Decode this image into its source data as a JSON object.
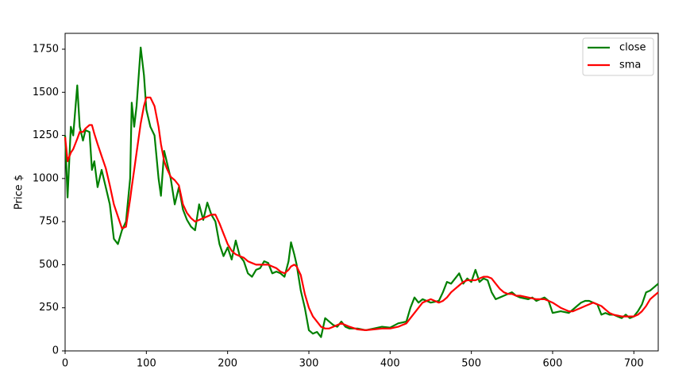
{
  "chart_data": {
    "type": "line",
    "y_label": "Price $",
    "x": [
      0,
      3,
      7,
      10,
      15,
      18,
      22,
      25,
      30,
      33,
      36,
      40,
      45,
      50,
      55,
      60,
      65,
      70,
      75,
      80,
      82,
      85,
      88,
      93,
      97,
      100,
      105,
      110,
      115,
      118,
      122,
      125,
      130,
      135,
      140,
      145,
      150,
      155,
      160,
      165,
      170,
      175,
      180,
      185,
      190,
      195,
      200,
      205,
      210,
      215,
      220,
      225,
      230,
      235,
      240,
      245,
      250,
      255,
      260,
      265,
      270,
      275,
      278,
      282,
      285,
      290,
      295,
      300,
      305,
      310,
      315,
      320,
      325,
      330,
      335,
      340,
      345,
      350,
      360,
      370,
      380,
      390,
      400,
      410,
      420,
      425,
      430,
      435,
      440,
      450,
      460,
      465,
      470,
      475,
      480,
      485,
      490,
      495,
      500,
      505,
      510,
      515,
      520,
      525,
      530,
      535,
      540,
      545,
      550,
      555,
      560,
      570,
      575,
      580,
      585,
      590,
      595,
      600,
      610,
      620,
      625,
      630,
      635,
      640,
      645,
      650,
      655,
      660,
      665,
      670,
      675,
      680,
      685,
      690,
      695,
      700,
      705,
      710,
      715,
      720,
      725,
      730
    ],
    "series": [
      {
        "name": "close",
        "color": "#008000",
        "values": [
          1250,
          890,
          1300,
          1250,
          1540,
          1300,
          1220,
          1280,
          1270,
          1050,
          1100,
          950,
          1050,
          950,
          850,
          650,
          620,
          700,
          750,
          1000,
          1440,
          1300,
          1420,
          1760,
          1600,
          1400,
          1300,
          1250,
          1000,
          900,
          1160,
          1100,
          1000,
          850,
          950,
          820,
          760,
          720,
          700,
          850,
          760,
          860,
          790,
          750,
          620,
          550,
          600,
          530,
          640,
          550,
          520,
          450,
          430,
          470,
          480,
          520,
          510,
          450,
          460,
          450,
          430,
          520,
          630,
          560,
          500,
          350,
          250,
          120,
          100,
          110,
          80,
          190,
          170,
          150,
          140,
          170,
          140,
          130,
          130,
          120,
          130,
          140,
          135,
          160,
          170,
          250,
          310,
          280,
          300,
          280,
          290,
          340,
          400,
          390,
          420,
          450,
          390,
          420,
          400,
          470,
          400,
          420,
          410,
          340,
          300,
          310,
          320,
          330,
          340,
          320,
          310,
          300,
          310,
          290,
          300,
          310,
          290,
          220,
          230,
          220,
          240,
          260,
          280,
          290,
          290,
          280,
          270,
          210,
          220,
          210,
          210,
          200,
          190,
          210,
          190,
          200,
          230,
          270,
          340,
          350,
          370,
          390
        ]
      },
      {
        "name": "sma",
        "color": "#ff0000",
        "values": [
          1240,
          1100,
          1150,
          1170,
          1230,
          1270,
          1270,
          1290,
          1310,
          1310,
          1260,
          1200,
          1130,
          1060,
          960,
          850,
          780,
          710,
          720,
          880,
          950,
          1050,
          1150,
          1320,
          1420,
          1470,
          1470,
          1420,
          1300,
          1200,
          1100,
          1060,
          1010,
          990,
          960,
          850,
          800,
          770,
          750,
          760,
          770,
          780,
          790,
          790,
          740,
          680,
          620,
          580,
          560,
          550,
          540,
          520,
          510,
          500,
          500,
          500,
          500,
          490,
          480,
          460,
          450,
          470,
          490,
          500,
          490,
          440,
          330,
          250,
          200,
          170,
          140,
          130,
          130,
          140,
          150,
          160,
          150,
          140,
          125,
          120,
          125,
          130,
          130,
          140,
          160,
          190,
          220,
          250,
          280,
          300,
          280,
          290,
          310,
          340,
          360,
          380,
          400,
          410,
          410,
          410,
          420,
          430,
          430,
          420,
          390,
          360,
          340,
          330,
          330,
          320,
          320,
          310,
          305,
          300,
          300,
          300,
          290,
          280,
          250,
          230,
          230,
          240,
          250,
          260,
          270,
          280,
          270,
          260,
          240,
          220,
          210,
          205,
          200,
          200,
          200,
          200,
          210,
          230,
          260,
          300,
          320,
          340
        ]
      }
    ],
    "xlim": [
      0,
      730
    ],
    "ylim": [
      0,
      1842
    ],
    "xticks": [
      0,
      100,
      200,
      300,
      400,
      500,
      600,
      700
    ],
    "yticks": [
      0,
      250,
      500,
      750,
      1000,
      1250,
      1500,
      1750
    ],
    "legend": "upper right"
  }
}
